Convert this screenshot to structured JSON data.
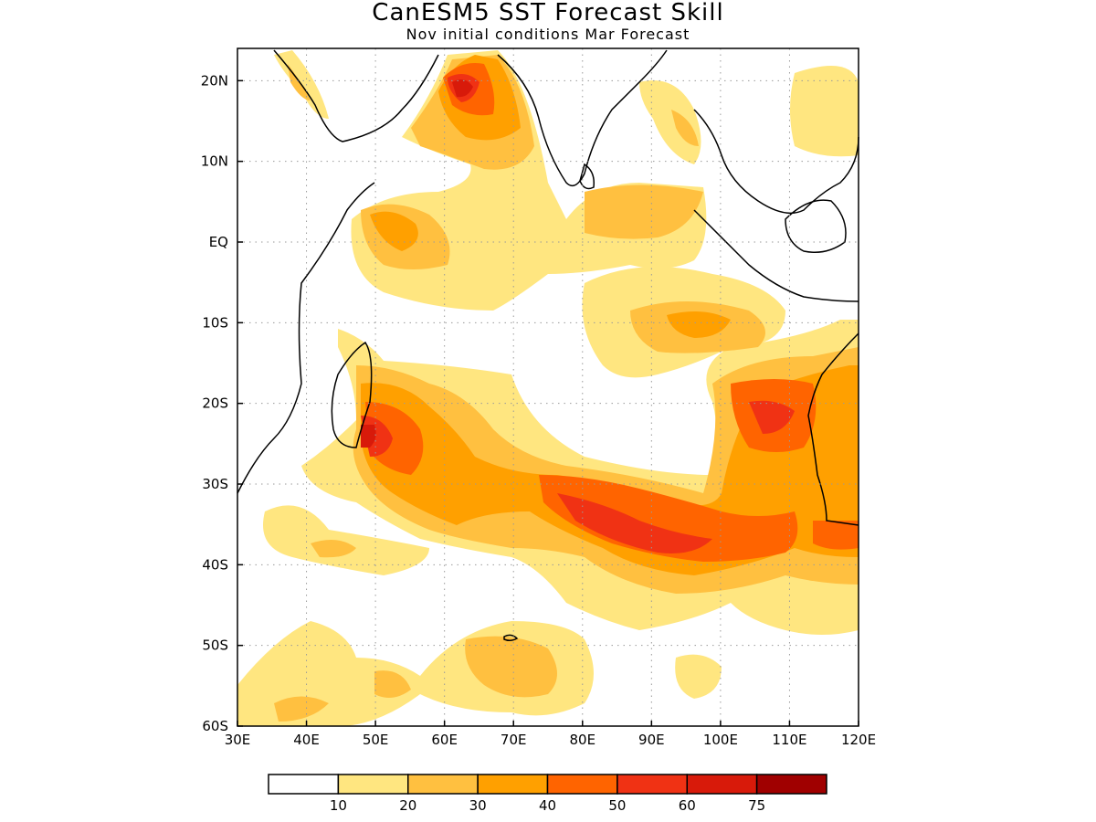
{
  "title": "CanESM5 SST Forecast Skill",
  "subtitle": "Nov initial conditions  Mar Forecast",
  "colors": {
    "levels": [
      "#ffffff",
      "#ffe680",
      "#ffc040",
      "#ffa000",
      "#ff6400",
      "#f03214",
      "#d81a0a",
      "#a00000"
    ],
    "coast": "#000000",
    "grid": "#9a9a9a"
  },
  "map": {
    "lon_range": [
      30,
      120
    ],
    "lat_range": [
      -60,
      24
    ],
    "x_ticks": [
      "30E",
      "40E",
      "50E",
      "60E",
      "70E",
      "80E",
      "90E",
      "100E",
      "110E",
      "120E"
    ],
    "y_ticks": [
      "20N",
      "10N",
      "EQ",
      "10S",
      "20S",
      "30S",
      "40S",
      "50S",
      "60S"
    ]
  },
  "colorbar": {
    "labels": [
      "10",
      "20",
      "30",
      "40",
      "50",
      "60",
      "75"
    ]
  }
}
